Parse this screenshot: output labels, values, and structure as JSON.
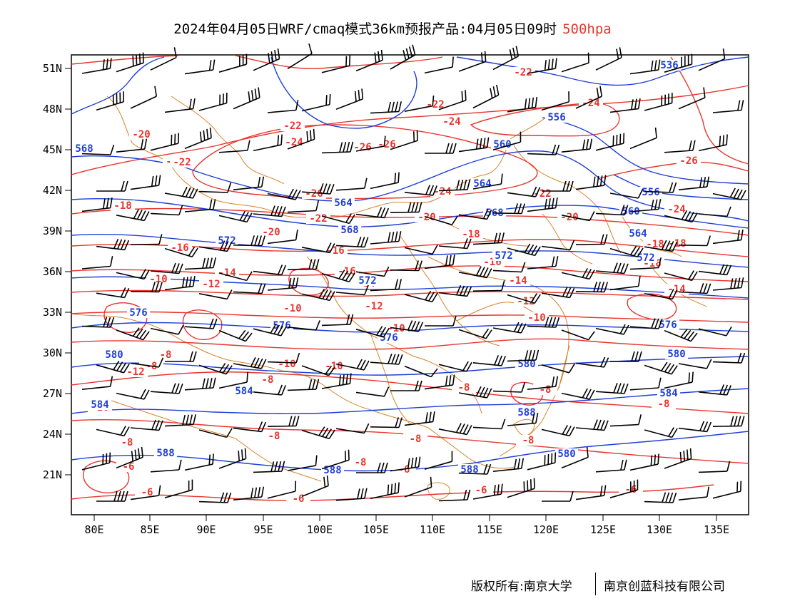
{
  "title": {
    "main": "2024年04月05日WRF/cmaq模式36km预报产品:04月05日09时",
    "level": "500hpa"
  },
  "colors": {
    "temperature_contour": "#e8352e",
    "height_contour": "#1f3fd6",
    "boundary": "#d9822b",
    "wind_barb": "#000000",
    "frame": "#000000",
    "level_text": "#e8352e"
  },
  "axes": {
    "lat_labels": [
      "51N",
      "48N",
      "45N",
      "42N",
      "39N",
      "36N",
      "33N",
      "30N",
      "27N",
      "24N",
      "21N"
    ],
    "lon_labels": [
      "80E",
      "85E",
      "90E",
      "95E",
      "100E",
      "105E",
      "110E",
      "115E",
      "120E",
      "125E",
      "130E",
      "135E"
    ]
  },
  "footer": {
    "left": "版权所有:南京大学",
    "right": "南京创蓝科技有限公司"
  },
  "contours": {
    "temperature_labels": [
      "-20",
      "-20",
      "-18",
      "-22",
      "-22",
      "-24",
      "-24",
      "-26",
      "-26",
      "-26",
      "-24",
      "-22",
      "-22",
      "-24",
      "-26",
      "-24",
      "-22",
      "-20",
      "-20",
      "-20",
      "-18",
      "-18",
      "-16",
      "-16",
      "-16",
      "-16",
      "-14",
      "-14",
      "-14",
      "-14",
      "-12",
      "-12",
      "-12",
      "-10",
      "-10",
      "-10",
      "-10",
      "-10",
      "-10",
      "-8",
      "-8",
      "-8",
      "-8",
      "-8",
      "-8",
      "-8",
      "-8",
      "-8",
      "-8",
      "-6",
      "-6",
      "-6",
      "-6",
      "-6",
      "-6",
      "-12",
      "-10",
      "-8",
      "-18",
      "-16",
      "-22"
    ],
    "height_labels": [
      "568",
      "576",
      "576",
      "580",
      "584",
      "588",
      "536",
      "556",
      "560",
      "564",
      "564",
      "556",
      "560",
      "564",
      "568",
      "568",
      "572",
      "572",
      "572",
      "576",
      "576",
      "580",
      "580",
      "584",
      "584",
      "588",
      "588",
      "588",
      "580",
      "572"
    ]
  }
}
